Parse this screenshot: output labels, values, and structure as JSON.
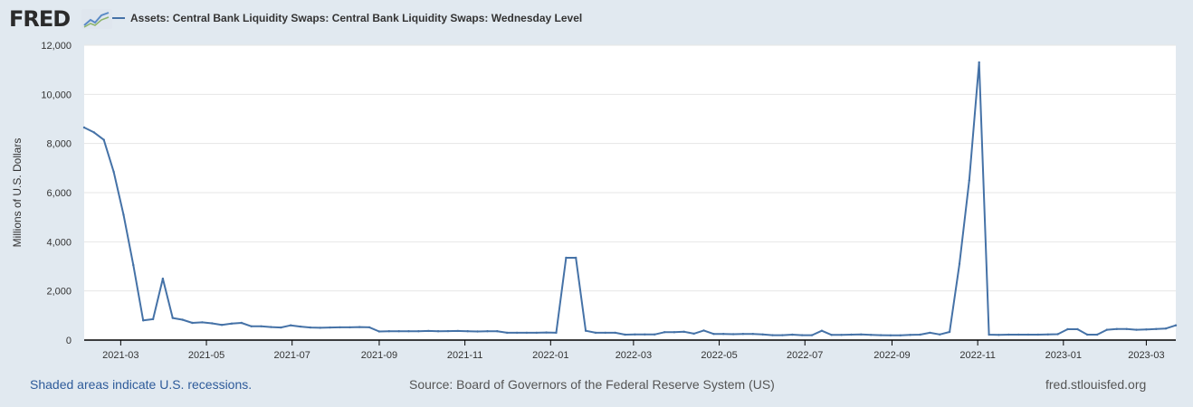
{
  "header": {
    "logo_text": "FRED",
    "logo_icon": "fred-chart-logo-icon"
  },
  "footer": {
    "recession_note": "Shaded areas indicate U.S. recessions.",
    "source": "Source: Board of Governors of the Federal Reserve System (US)",
    "site": "fred.stlouisfed.org"
  },
  "colors": {
    "series": "#4572a7",
    "background": "#e1e9f0",
    "plot_background": "#ffffff",
    "grid": "#e6e6e6",
    "axis": "#000000"
  },
  "chart_data": {
    "type": "line",
    "title": "",
    "xlabel": "",
    "ylabel": "Millions of U.S. Dollars",
    "ylim": [
      0,
      12000
    ],
    "xlim": [
      "2021-02-03",
      "2023-03-22"
    ],
    "grid": true,
    "legend_position": "top-left",
    "y_ticks": [
      {
        "value": 0,
        "label": "0"
      },
      {
        "value": 2000,
        "label": "2,000"
      },
      {
        "value": 4000,
        "label": "4,000"
      },
      {
        "value": 6000,
        "label": "6,000"
      },
      {
        "value": 8000,
        "label": "8,000"
      },
      {
        "value": 10000,
        "label": "10,000"
      },
      {
        "value": 12000,
        "label": "12,000"
      }
    ],
    "x_ticks": [
      {
        "value": "2021-03-01",
        "label": "2021-03"
      },
      {
        "value": "2021-05-01",
        "label": "2021-05"
      },
      {
        "value": "2021-07-01",
        "label": "2021-07"
      },
      {
        "value": "2021-09-01",
        "label": "2021-09"
      },
      {
        "value": "2021-11-01",
        "label": "2021-11"
      },
      {
        "value": "2022-01-01",
        "label": "2022-01"
      },
      {
        "value": "2022-03-01",
        "label": "2022-03"
      },
      {
        "value": "2022-05-01",
        "label": "2022-05"
      },
      {
        "value": "2022-07-01",
        "label": "2022-07"
      },
      {
        "value": "2022-09-01",
        "label": "2022-09"
      },
      {
        "value": "2022-11-01",
        "label": "2022-11"
      },
      {
        "value": "2023-01-01",
        "label": "2023-01"
      },
      {
        "value": "2023-03-01",
        "label": "2023-03"
      }
    ],
    "series": [
      {
        "name": "Assets: Central Bank Liquidity Swaps: Central Bank Liquidity Swaps: Wednesday Level",
        "color": "#4572a7",
        "points": [
          [
            "2021-02-03",
            8650
          ],
          [
            "2021-02-10",
            8450
          ],
          [
            "2021-02-17",
            8150
          ],
          [
            "2021-02-24",
            6850
          ],
          [
            "2021-03-03",
            5100
          ],
          [
            "2021-03-10",
            3050
          ],
          [
            "2021-03-17",
            800
          ],
          [
            "2021-03-24",
            850
          ],
          [
            "2021-03-31",
            2500
          ],
          [
            "2021-04-07",
            900
          ],
          [
            "2021-04-14",
            830
          ],
          [
            "2021-04-21",
            700
          ],
          [
            "2021-04-28",
            720
          ],
          [
            "2021-05-05",
            680
          ],
          [
            "2021-05-12",
            620
          ],
          [
            "2021-05-19",
            670
          ],
          [
            "2021-05-26",
            700
          ],
          [
            "2021-06-02",
            560
          ],
          [
            "2021-06-09",
            560
          ],
          [
            "2021-06-16",
            530
          ],
          [
            "2021-06-23",
            510
          ],
          [
            "2021-06-30",
            600
          ],
          [
            "2021-07-07",
            550
          ],
          [
            "2021-07-14",
            510
          ],
          [
            "2021-07-21",
            500
          ],
          [
            "2021-07-28",
            510
          ],
          [
            "2021-08-04",
            520
          ],
          [
            "2021-08-11",
            520
          ],
          [
            "2021-08-18",
            530
          ],
          [
            "2021-08-25",
            520
          ],
          [
            "2021-09-01",
            350
          ],
          [
            "2021-09-08",
            360
          ],
          [
            "2021-09-15",
            360
          ],
          [
            "2021-09-22",
            360
          ],
          [
            "2021-09-29",
            360
          ],
          [
            "2021-10-06",
            370
          ],
          [
            "2021-10-13",
            360
          ],
          [
            "2021-10-20",
            365
          ],
          [
            "2021-10-27",
            370
          ],
          [
            "2021-11-03",
            360
          ],
          [
            "2021-11-10",
            350
          ],
          [
            "2021-11-17",
            360
          ],
          [
            "2021-11-24",
            360
          ],
          [
            "2021-12-01",
            300
          ],
          [
            "2021-12-08",
            300
          ],
          [
            "2021-12-15",
            300
          ],
          [
            "2021-12-22",
            300
          ],
          [
            "2021-12-29",
            310
          ],
          [
            "2022-01-05",
            300
          ],
          [
            "2022-01-12",
            3350
          ],
          [
            "2022-01-19",
            3350
          ],
          [
            "2022-01-26",
            380
          ],
          [
            "2022-02-02",
            300
          ],
          [
            "2022-02-09",
            300
          ],
          [
            "2022-02-16",
            300
          ],
          [
            "2022-02-23",
            220
          ],
          [
            "2022-03-02",
            230
          ],
          [
            "2022-03-09",
            230
          ],
          [
            "2022-03-16",
            230
          ],
          [
            "2022-03-23",
            320
          ],
          [
            "2022-03-30",
            320
          ],
          [
            "2022-04-06",
            340
          ],
          [
            "2022-04-13",
            260
          ],
          [
            "2022-04-20",
            390
          ],
          [
            "2022-04-27",
            250
          ],
          [
            "2022-05-04",
            250
          ],
          [
            "2022-05-11",
            240
          ],
          [
            "2022-05-18",
            250
          ],
          [
            "2022-05-25",
            250
          ],
          [
            "2022-06-01",
            230
          ],
          [
            "2022-06-08",
            200
          ],
          [
            "2022-06-15",
            200
          ],
          [
            "2022-06-22",
            220
          ],
          [
            "2022-06-29",
            200
          ],
          [
            "2022-07-06",
            200
          ],
          [
            "2022-07-13",
            380
          ],
          [
            "2022-07-20",
            210
          ],
          [
            "2022-07-27",
            210
          ],
          [
            "2022-08-03",
            220
          ],
          [
            "2022-08-10",
            230
          ],
          [
            "2022-08-17",
            210
          ],
          [
            "2022-08-24",
            200
          ],
          [
            "2022-08-31",
            190
          ],
          [
            "2022-09-07",
            190
          ],
          [
            "2022-09-14",
            210
          ],
          [
            "2022-09-21",
            220
          ],
          [
            "2022-09-28",
            300
          ],
          [
            "2022-10-05",
            230
          ],
          [
            "2022-10-12",
            330
          ],
          [
            "2022-10-19",
            3100
          ],
          [
            "2022-10-26",
            6500
          ],
          [
            "2022-11-02",
            11300
          ],
          [
            "2022-11-09",
            220
          ],
          [
            "2022-11-16",
            210
          ],
          [
            "2022-11-23",
            220
          ],
          [
            "2022-11-30",
            220
          ],
          [
            "2022-12-07",
            220
          ],
          [
            "2022-12-14",
            220
          ],
          [
            "2022-12-21",
            230
          ],
          [
            "2022-12-28",
            240
          ],
          [
            "2023-01-04",
            440
          ],
          [
            "2023-01-11",
            440
          ],
          [
            "2023-01-18",
            220
          ],
          [
            "2023-01-25",
            220
          ],
          [
            "2023-02-01",
            420
          ],
          [
            "2023-02-08",
            450
          ],
          [
            "2023-02-15",
            450
          ],
          [
            "2023-02-22",
            420
          ],
          [
            "2023-03-01",
            430
          ],
          [
            "2023-03-08",
            450
          ],
          [
            "2023-03-15",
            470
          ],
          [
            "2023-03-22",
            600
          ]
        ]
      }
    ]
  }
}
